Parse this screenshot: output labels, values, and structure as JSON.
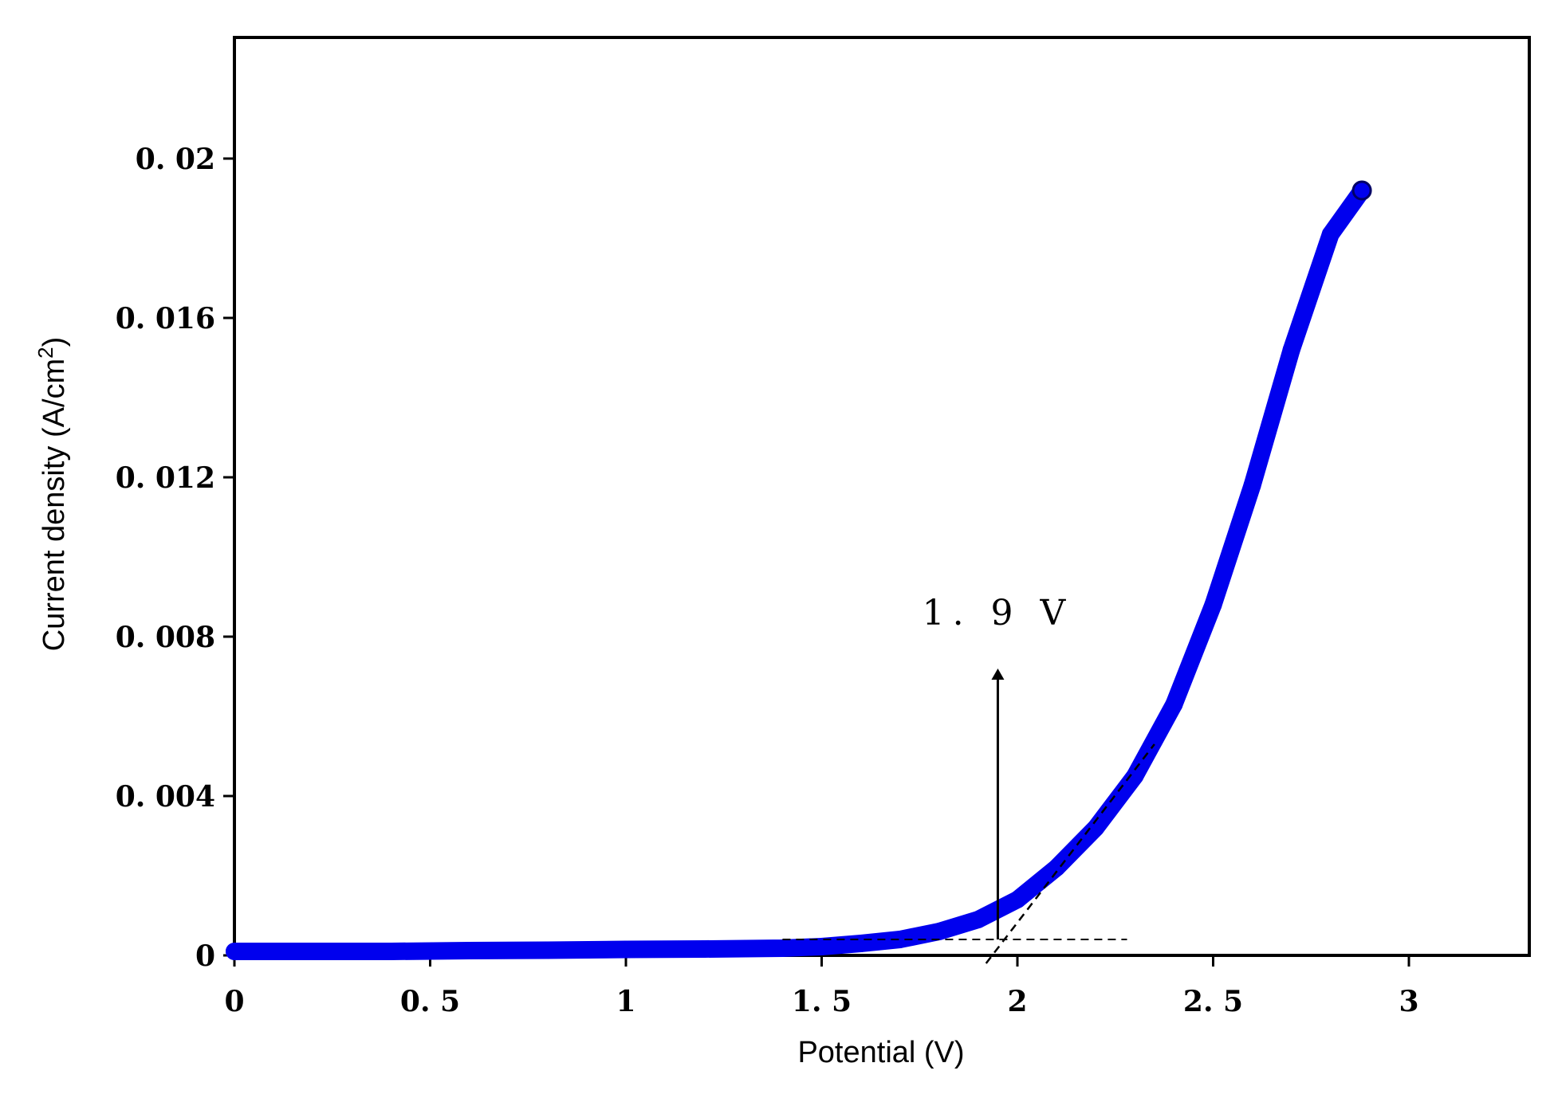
{
  "chart_data": {
    "type": "scatter",
    "title": "",
    "xlabel": "Potential (V)",
    "ylabel_main": "Current density (A/cm",
    "ylabel_sup": "2",
    "ylabel_close": ")",
    "xlim": [
      0,
      3.3
    ],
    "ylim": [
      0,
      0.023
    ],
    "x_ticks": [
      {
        "value": 0,
        "label": "0"
      },
      {
        "value": 0.5,
        "label": "0. 5"
      },
      {
        "value": 1,
        "label": "1"
      },
      {
        "value": 1.5,
        "label": "1. 5"
      },
      {
        "value": 2,
        "label": "2"
      },
      {
        "value": 2.5,
        "label": "2. 5"
      },
      {
        "value": 3,
        "label": "3"
      }
    ],
    "y_ticks": [
      {
        "value": 0,
        "label": "0"
      },
      {
        "value": 0.004,
        "label": "0. 004"
      },
      {
        "value": 0.008,
        "label": "0. 008"
      },
      {
        "value": 0.012,
        "label": "0. 012"
      },
      {
        "value": 0.016,
        "label": "0. 016"
      },
      {
        "value": 0.02,
        "label": "0. 02"
      }
    ],
    "grid": false,
    "legend": "none",
    "series": [
      {
        "color": "#0000ee",
        "points": [
          [
            0.0,
            0.0001
          ],
          [
            0.2,
            0.0001
          ],
          [
            0.4,
            0.0001
          ],
          [
            0.6,
            0.00012
          ],
          [
            0.8,
            0.00013
          ],
          [
            1.0,
            0.00015
          ],
          [
            1.2,
            0.00016
          ],
          [
            1.4,
            0.00018
          ],
          [
            1.5,
            0.00022
          ],
          [
            1.6,
            0.0003
          ],
          [
            1.7,
            0.0004
          ],
          [
            1.8,
            0.0006
          ],
          [
            1.9,
            0.0009
          ],
          [
            2.0,
            0.0014
          ],
          [
            2.1,
            0.0022
          ],
          [
            2.2,
            0.0032
          ],
          [
            2.3,
            0.0045
          ],
          [
            2.4,
            0.0063
          ],
          [
            2.5,
            0.0088
          ],
          [
            2.6,
            0.0118
          ],
          [
            2.7,
            0.0152
          ],
          [
            2.8,
            0.0181
          ],
          [
            2.88,
            0.0192
          ]
        ]
      }
    ],
    "annotations": {
      "onset_label": "1. 9 V",
      "arrow_x": 1.95,
      "arrow_y_from": 0.0004,
      "arrow_y_to": 0.0072,
      "baseline_y": 0.0004,
      "baseline_x_range": [
        1.4,
        2.28
      ],
      "tangent_from": [
        1.92,
        -0.0002
      ],
      "tangent_to": [
        2.35,
        0.0053
      ]
    }
  }
}
